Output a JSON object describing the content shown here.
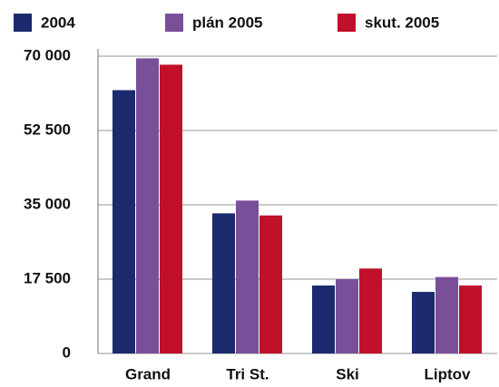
{
  "chart_data": {
    "type": "bar",
    "categories": [
      "Grand",
      "Tri St.",
      "Ski",
      "Liptov"
    ],
    "series": [
      {
        "name": "2004",
        "color": "#1c2a6e",
        "values": [
          62000,
          33000,
          16000,
          14500
        ]
      },
      {
        "name": "plán 2005",
        "color": "#7a4f9a",
        "values": [
          69500,
          36000,
          17500,
          18000
        ]
      },
      {
        "name": "skut. 2005",
        "color": "#c0102a",
        "values": [
          68000,
          32500,
          20000,
          16000
        ]
      }
    ],
    "ylim": [
      0,
      70000
    ],
    "yticks": [
      0,
      {
        "value": 17500,
        "label": "17 500"
      },
      {
        "value": 35000,
        "label": "35 000"
      },
      {
        "value": 52500,
        "label": "52 500"
      },
      {
        "value": 70000,
        "label": "70 000"
      }
    ],
    "grid": true,
    "legend": "top"
  }
}
